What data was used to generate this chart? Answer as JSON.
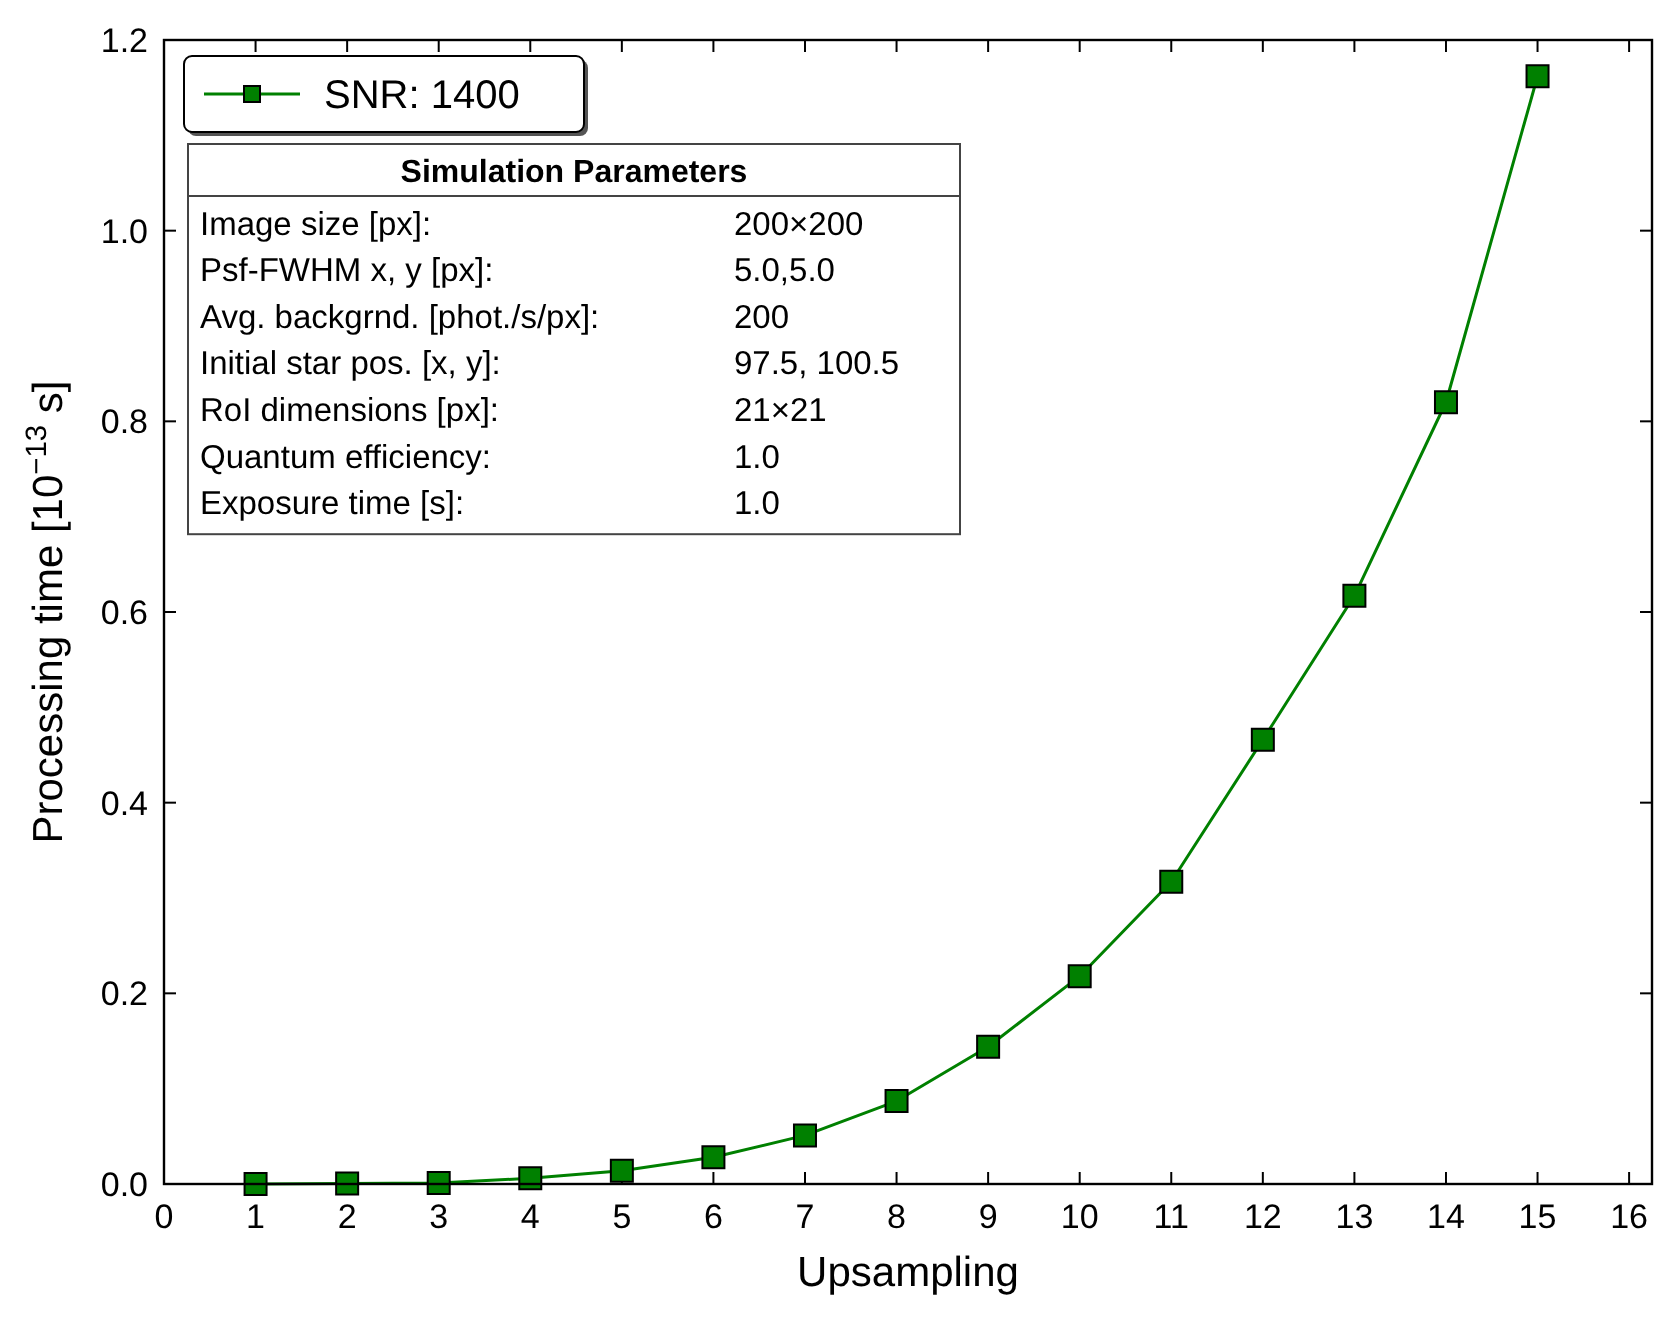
{
  "chart_data": {
    "type": "line",
    "xlabel": "Upsampling",
    "ylabel": "Processing time [10$^{−13}$ s]",
    "x": [
      1,
      2,
      3,
      4,
      5,
      6,
      7,
      8,
      9,
      10,
      11,
      12,
      13,
      14,
      15
    ],
    "series": [
      {
        "name": "SNR: 1400",
        "color": "#008000",
        "values": [
          0.0,
          0.0005,
          0.001,
          0.006,
          0.014,
          0.028,
          0.051,
          0.087,
          0.144,
          0.218,
          0.317,
          0.466,
          0.617,
          0.82,
          1.162
        ]
      }
    ],
    "xlim": [
      0,
      16.25
    ],
    "xticks": [
      0,
      1,
      2,
      3,
      4,
      5,
      6,
      7,
      8,
      9,
      10,
      11,
      12,
      13,
      14,
      15,
      16
    ],
    "ylim": [
      0,
      1.2
    ],
    "yticks": [
      {
        "value": 0,
        "label": "0.0"
      },
      {
        "value": 0.2,
        "label": "0.2"
      },
      {
        "value": 0.4,
        "label": "0.4"
      },
      {
        "value": 0.6,
        "label": "0.6"
      },
      {
        "value": 0.8,
        "label": "0.8"
      },
      {
        "value": 1.0,
        "label": "1.0"
      },
      {
        "value": 1.2,
        "label": "1.2"
      }
    ],
    "marker": "square",
    "legend": "top left",
    "grid": false,
    "annotations": [
      "Simulation Parameters",
      "Image size [px]:",
      "200×200",
      "Psf-FWHM x, y [px]:",
      "5.0,5.0",
      "Avg. backgrnd. [phot./s/px]:",
      "200",
      "Initial star pos. [x, y]:",
      "97.5, 100.5",
      "RoI dimensions [px]:",
      "21×21",
      "Quantum efficiency:",
      "1.0",
      "Exposure time [s]:",
      "1.0"
    ]
  }
}
